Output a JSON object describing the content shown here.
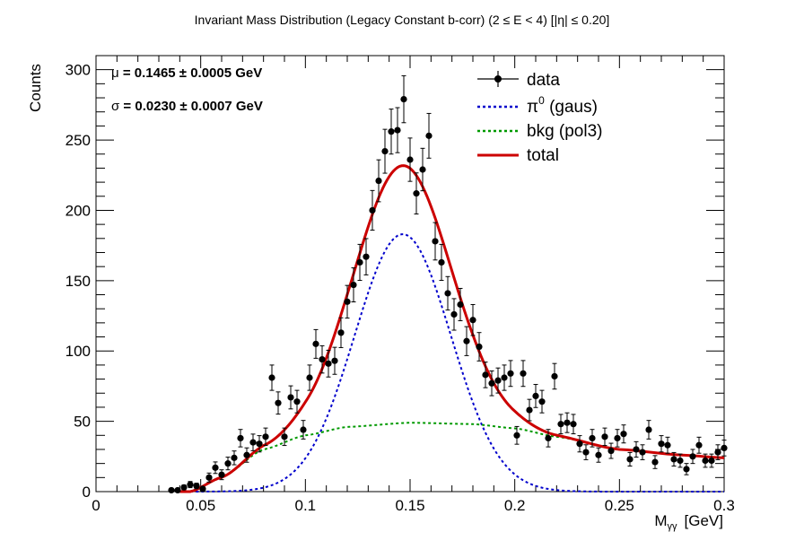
{
  "chart_data": {
    "type": "scatter",
    "title": "Invariant Mass Distribution (Legacy Constant b-corr)   (2 ≤ E < 4)   [|η| ≤ 0.20]",
    "xlabel": "M",
    "xlabel_sub": "γγ",
    "xlabel_unit": "[GeV]",
    "ylabel": "Counts",
    "xlim": [
      0,
      0.3
    ],
    "ylim": [
      0,
      310
    ],
    "x_ticks": [
      0,
      0.05,
      0.1,
      0.15,
      0.2,
      0.25,
      0.3
    ],
    "x_tick_labels": [
      "0",
      "0.05",
      "0.1",
      "0.15",
      "0.2",
      "0.25",
      "0.3"
    ],
    "y_ticks": [
      0,
      50,
      100,
      150,
      200,
      250,
      300
    ],
    "y_tick_labels": [
      "0",
      "50",
      "100",
      "150",
      "200",
      "250",
      "300"
    ],
    "fit_params": [
      {
        "symbol": "μ",
        "text": " = 0.1465  ± 0.0005 GeV"
      },
      {
        "symbol": "σ",
        "text": " = 0.0230  ± 0.0007 GeV"
      }
    ],
    "legend": [
      {
        "label": "data",
        "style": "marker",
        "color": "#000000"
      },
      {
        "label": "π",
        "sup": "0",
        "suffix": " (gaus)",
        "style": "dotted",
        "color": "#0000cc"
      },
      {
        "label": "bkg (pol3)",
        "style": "dotted",
        "color": "#009900"
      },
      {
        "label": "total",
        "style": "solid",
        "color": "#cc0000"
      }
    ],
    "data_points": {
      "x": [
        0.036,
        0.039,
        0.042,
        0.045,
        0.048,
        0.051,
        0.054,
        0.057,
        0.06,
        0.063,
        0.066,
        0.069,
        0.072,
        0.075,
        0.078,
        0.081,
        0.084,
        0.087,
        0.09,
        0.093,
        0.096,
        0.099,
        0.102,
        0.105,
        0.108,
        0.111,
        0.114,
        0.117,
        0.12,
        0.123,
        0.126,
        0.129,
        0.132,
        0.135,
        0.138,
        0.141,
        0.144,
        0.147,
        0.15,
        0.153,
        0.156,
        0.159,
        0.162,
        0.165,
        0.168,
        0.171,
        0.174,
        0.177,
        0.18,
        0.183,
        0.186,
        0.189,
        0.192,
        0.195,
        0.198,
        0.201,
        0.204,
        0.207,
        0.21,
        0.213,
        0.216,
        0.219,
        0.222,
        0.225,
        0.228,
        0.231,
        0.234,
        0.237,
        0.24,
        0.243,
        0.246,
        0.249,
        0.252,
        0.255,
        0.258,
        0.261,
        0.264,
        0.267,
        0.27,
        0.273,
        0.276,
        0.279,
        0.282,
        0.285,
        0.288,
        0.291,
        0.294,
        0.297,
        0.3
      ],
      "y": [
        1,
        1,
        3,
        5,
        4,
        2,
        10,
        17,
        12,
        20,
        24,
        38,
        26,
        35,
        34,
        39,
        81,
        63,
        39,
        67,
        64,
        44,
        81,
        105,
        94,
        91,
        93,
        113,
        135,
        147,
        163,
        167,
        200,
        221,
        242,
        256,
        257,
        279,
        236,
        212,
        229,
        253,
        178,
        163,
        141,
        126,
        133,
        107,
        122,
        103,
        83,
        77,
        79,
        81,
        84,
        40,
        84,
        58,
        68,
        64,
        38,
        82,
        48,
        49,
        48,
        34,
        28,
        38,
        26,
        39,
        29,
        38,
        41,
        23,
        30,
        28,
        44,
        21,
        34,
        33,
        23,
        22,
        16,
        25,
        33,
        22,
        22,
        28,
        31
      ],
      "yerr": [
        1,
        1,
        1.7,
        2.2,
        2,
        1.4,
        3.2,
        4.1,
        3.5,
        4.5,
        4.9,
        6.2,
        5.1,
        5.9,
        5.8,
        6.2,
        9,
        7.9,
        6.2,
        8.2,
        8,
        6.6,
        9,
        10.2,
        9.7,
        9.5,
        9.6,
        10.6,
        11.6,
        12.1,
        12.8,
        12.9,
        14.1,
        14.9,
        15.6,
        16,
        16,
        16.7,
        15.4,
        14.6,
        15.1,
        15.9,
        13.3,
        12.8,
        11.9,
        11.2,
        11.5,
        10.3,
        11,
        10.1,
        9.1,
        8.8,
        8.9,
        9,
        9.2,
        6.3,
        9.2,
        7.6,
        8.2,
        8,
        6.2,
        9.1,
        6.9,
        7,
        6.9,
        5.8,
        5.3,
        6.2,
        5.1,
        6.2,
        5.4,
        6.2,
        6.4,
        4.8,
        5.5,
        5.3,
        6.6,
        4.6,
        5.8,
        5.7,
        4.8,
        4.7,
        4,
        5,
        5.7,
        4.7,
        4.7,
        5.3,
        5.6
      ]
    },
    "fit": {
      "gaus": {
        "amplitude": 183,
        "mean": 0.1465,
        "sigma": 0.023
      },
      "bkg_pol3": {
        "x": [
          0.045,
          0.06,
          0.08,
          0.1,
          0.12,
          0.15,
          0.18,
          0.2,
          0.22,
          0.25,
          0.28,
          0.3
        ],
        "y": [
          0,
          10,
          30,
          40,
          46,
          49,
          48,
          45,
          39,
          30,
          26,
          24
        ]
      },
      "x_range": [
        0.04,
        0.3
      ]
    },
    "grid": false,
    "legend_position": "top-right"
  },
  "colors": {
    "data": "#000000",
    "signal": "#0000cc",
    "background": "#009900",
    "total": "#cc0000"
  }
}
